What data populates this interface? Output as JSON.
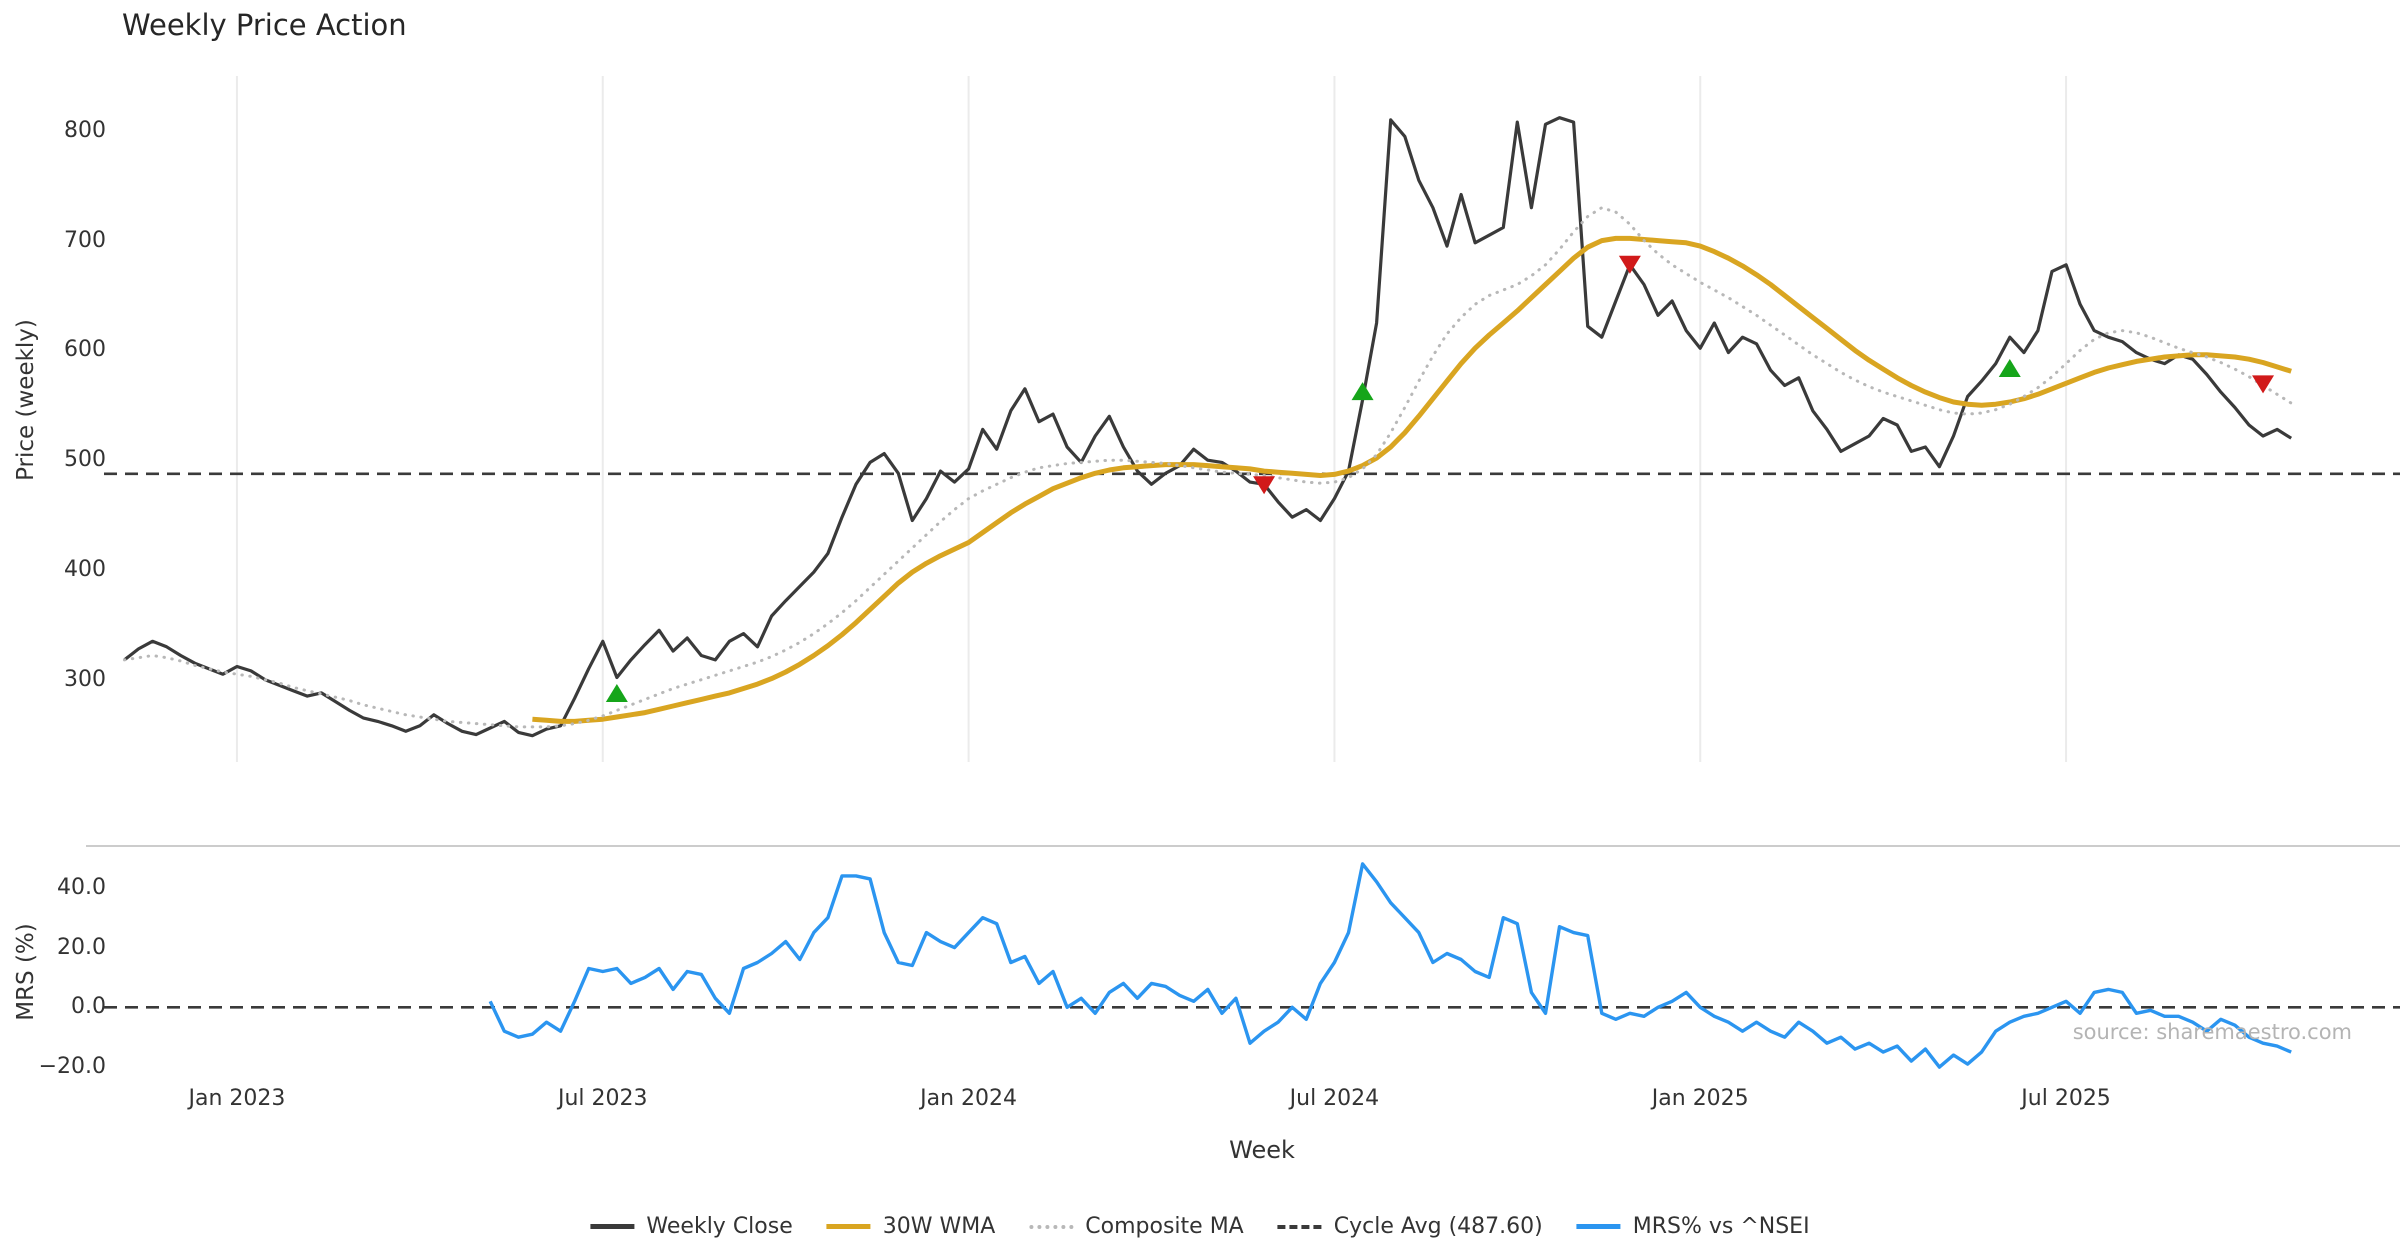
{
  "chart_data": {
    "type": "line",
    "title": "Weekly Price Action",
    "xlabel": "Week",
    "source": "source: sharemaestro.com",
    "x_unit": "week_index",
    "x_ticks": [
      {
        "week": 8,
        "label": "Jan 2023"
      },
      {
        "week": 34,
        "label": "Jul 2023"
      },
      {
        "week": 60,
        "label": "Jan 2024"
      },
      {
        "week": 86,
        "label": "Jul 2024"
      },
      {
        "week": 112,
        "label": "Jan 2025"
      },
      {
        "week": 138,
        "label": "Jul 2025"
      }
    ],
    "panels": [
      {
        "name": "price",
        "ylabel": "Price (weekly)",
        "ylim": [
          225,
          850
        ],
        "y_ticks": [
          {
            "value": 800,
            "label": "800"
          },
          {
            "value": 700,
            "label": "700"
          },
          {
            "value": 600,
            "label": "600"
          },
          {
            "value": 500,
            "label": "500"
          },
          {
            "value": 400,
            "label": "400"
          },
          {
            "value": 300,
            "label": "300"
          }
        ],
        "ref_line": {
          "label": "Cycle Avg (487.60)",
          "value": 487.6,
          "color": "#3a3a3a",
          "style": "dashed"
        },
        "series": [
          {
            "name": "Weekly Close",
            "color": "#3a3a3a",
            "style": "solid",
            "width": 3.2,
            "start_week": 0,
            "values": [
              318,
              328,
              335,
              330,
              322,
              315,
              310,
              305,
              312,
              308,
              300,
              295,
              290,
              285,
              288,
              280,
              272,
              265,
              262,
              258,
              253,
              258,
              268,
              260,
              253,
              250,
              256,
              262,
              252,
              249,
              255,
              258,
              283,
              310,
              335,
              302,
              318,
              332,
              345,
              326,
              338,
              322,
              318,
              335,
              342,
              330,
              358,
              372,
              385,
              398,
              415,
              448,
              478,
              498,
              506,
              488,
              445,
              465,
              490,
              480,
              492,
              528,
              510,
              545,
              565,
              535,
              542,
              512,
              498,
              522,
              540,
              512,
              490,
              478,
              488,
              495,
              510,
              500,
              498,
              490,
              480,
              478,
              462,
              448,
              455,
              445,
              465,
              490,
              555,
              625,
              810,
              795,
              755,
              730,
              695,
              742,
              698,
              705,
              712,
              808,
              730,
              806,
              812,
              808,
              622,
              612,
              645,
              678,
              660,
              632,
              645,
              618,
              602,
              625,
              598,
              612,
              606,
              582,
              568,
              575,
              545,
              528,
              508,
              515,
              522,
              538,
              532,
              508,
              512,
              494,
              522,
              558,
              572,
              588,
              612,
              598,
              618,
              672,
              678,
              642,
              618,
              612,
              608,
              598,
              592,
              588,
              596,
              592,
              578,
              562,
              548,
              532,
              522,
              528,
              520
            ]
          },
          {
            "name": "30W WMA",
            "color": "#d9a521",
            "style": "solid",
            "width": 5,
            "start_week": 29,
            "values": [
              264,
              263,
              262,
              262,
              263,
              264,
              266,
              268,
              270,
              273,
              276,
              279,
              282,
              285,
              288,
              292,
              296,
              301,
              307,
              314,
              322,
              331,
              341,
              352,
              364,
              376,
              388,
              398,
              406,
              413,
              419,
              425,
              434,
              443,
              452,
              460,
              467,
              474,
              479,
              484,
              488,
              491,
              493,
              494,
              495,
              496,
              496,
              496,
              495,
              494,
              493,
              492,
              490,
              489,
              488,
              487,
              486,
              487,
              490,
              495,
              502,
              512,
              525,
              540,
              556,
              572,
              588,
              602,
              614,
              625,
              636,
              648,
              660,
              672,
              684,
              694,
              700,
              702,
              702,
              701,
              700,
              699,
              698,
              695,
              690,
              684,
              677,
              669,
              660,
              650,
              640,
              630,
              620,
              610,
              600,
              591,
              583,
              575,
              568,
              562,
              557,
              553,
              551,
              550,
              551,
              553,
              556,
              560,
              565,
              570,
              575,
              580,
              584,
              587,
              590,
              592,
              594,
              595,
              596,
              596,
              595,
              594,
              592,
              589,
              585,
              581
            ]
          },
          {
            "name": "Composite MA",
            "color": "#b8b8b8",
            "style": "dotted",
            "width": 3,
            "start_week": 0,
            "values": [
              318,
              320,
              322,
              320,
              317,
              313,
              310,
              307,
              305,
              303,
              300,
              297,
              293,
              290,
              287,
              284,
              281,
              277,
              274,
              271,
              268,
              266,
              264,
              262,
              261,
              260,
              259,
              258,
              257,
              257,
              257,
              258,
              260,
              263,
              267,
              272,
              277,
              282,
              287,
              292,
              296,
              300,
              304,
              308,
              312,
              316,
              321,
              327,
              334,
              342,
              351,
              361,
              372,
              384,
              396,
              408,
              420,
              432,
              444,
              455,
              465,
              472,
              478,
              484,
              489,
              493,
              495,
              497,
              498,
              499,
              500,
              500,
              499,
              498,
              497,
              495,
              493,
              491,
              489,
              488,
              487,
              486,
              484,
              482,
              480,
              479,
              480,
              484,
              492,
              505,
              525,
              548,
              572,
              595,
              615,
              630,
              642,
              650,
              655,
              660,
              668,
              678,
              692,
              708,
              722,
              730,
              726,
              715,
              700,
              688,
              678,
              670,
              662,
              655,
              648,
              640,
              632,
              623,
              614,
              605,
              596,
              588,
              580,
              573,
              567,
              562,
              558,
              554,
              550,
              546,
              543,
              542,
              543,
              546,
              551,
              558,
              566,
              576,
              588,
              600,
              610,
              616,
              618,
              616,
              612,
              607,
              602,
              598,
              594,
              589,
              583,
              576,
              568,
              560,
              552
            ]
          }
        ],
        "signals": {
          "buy": {
            "color": "#16a51a",
            "points": [
              {
                "week": 35,
                "value": 287
              },
              {
                "week": 88,
                "value": 562
              },
              {
                "week": 134,
                "value": 583
              }
            ]
          },
          "sell": {
            "color": "#d11a1a",
            "points": [
              {
                "week": 81,
                "value": 478
              },
              {
                "week": 107,
                "value": 679
              },
              {
                "week": 152,
                "value": 570
              }
            ]
          }
        }
      },
      {
        "name": "mrs",
        "ylabel": "MRS (%)",
        "ylim": [
          -24,
          54
        ],
        "y_ticks": [
          {
            "value": 40,
            "label": "40.0"
          },
          {
            "value": 20,
            "label": "20.0"
          },
          {
            "value": 0,
            "label": "0.0"
          },
          {
            "value": -20,
            "label": "−20.0"
          }
        ],
        "ref_line": {
          "label": "Zero Line",
          "value": 0,
          "color": "#3a3a3a",
          "style": "dashed"
        },
        "series": [
          {
            "name": "MRS% vs ^NSEI",
            "color": "#2b95f0",
            "style": "solid",
            "width": 3.4,
            "start_week": 26,
            "values": [
              2,
              -8,
              -10,
              -9,
              -5,
              -8,
              2,
              13,
              12,
              13,
              8,
              10,
              13,
              6,
              12,
              11,
              3,
              -2,
              13,
              15,
              18,
              22,
              16,
              25,
              30,
              44,
              44,
              43,
              25,
              15,
              14,
              25,
              22,
              20,
              25,
              30,
              28,
              15,
              17,
              8,
              12,
              0,
              3,
              -2,
              5,
              8,
              3,
              8,
              7,
              4,
              2,
              6,
              -2,
              3,
              -12,
              -8,
              -5,
              0,
              -4,
              8,
              15,
              25,
              48,
              42,
              35,
              30,
              25,
              15,
              18,
              16,
              12,
              10,
              30,
              28,
              5,
              -2,
              27,
              25,
              24,
              -2,
              -4,
              -2,
              -3,
              0,
              2,
              5,
              0,
              -3,
              -5,
              -8,
              -5,
              -8,
              -10,
              -5,
              -8,
              -12,
              -10,
              -14,
              -12,
              -15,
              -13,
              -18,
              -14,
              -20,
              -16,
              -19,
              -15,
              -8,
              -5,
              -3,
              -2,
              0,
              2,
              -2,
              5,
              6,
              5,
              -2,
              -1,
              -3,
              -3,
              -5,
              -8,
              -4,
              -6,
              -10,
              -12,
              -13,
              -15
            ]
          }
        ]
      }
    ],
    "legend": [
      {
        "label": "Weekly Close",
        "color": "#3a3a3a",
        "style": "solid"
      },
      {
        "label": "30W WMA",
        "color": "#d9a521",
        "style": "solid"
      },
      {
        "label": "Composite MA",
        "color": "#b8b8b8",
        "style": "dotted"
      },
      {
        "label": "Cycle Avg (487.60)",
        "color": "#3a3a3a",
        "style": "dashed"
      },
      {
        "label": "MRS% vs ^NSEI",
        "color": "#2b95f0",
        "style": "solid"
      }
    ]
  }
}
